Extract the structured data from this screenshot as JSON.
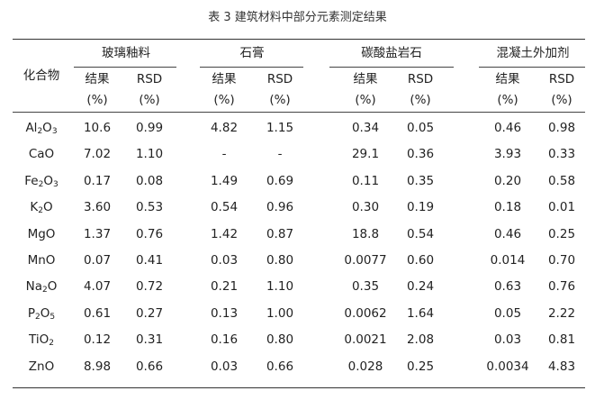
{
  "caption": "表 3 建筑材料中部分元素测定结果",
  "row_header": "化合物",
  "groups": [
    "玻璃釉料",
    "石膏",
    "碳酸盐岩石",
    "混凝土外加剂"
  ],
  "sub_headers": {
    "result": "结果",
    "rsd": "RSD",
    "unit": "(%)"
  },
  "rows": [
    {
      "compound": [
        "Al",
        "2",
        "O",
        "3"
      ],
      "values": [
        "10.6",
        "0.99",
        "4.82",
        "1.15",
        "0.34",
        "0.05",
        "0.46",
        "0.98"
      ]
    },
    {
      "compound": [
        "CaO"
      ],
      "values": [
        "7.02",
        "1.10",
        "-",
        "-",
        "29.1",
        "0.36",
        "3.93",
        "0.33"
      ]
    },
    {
      "compound": [
        "Fe",
        "2",
        "O",
        "3"
      ],
      "values": [
        "0.17",
        "0.08",
        "1.49",
        "0.69",
        "0.11",
        "0.35",
        "0.20",
        "0.58"
      ]
    },
    {
      "compound": [
        "K",
        "2",
        "O"
      ],
      "values": [
        "3.60",
        "0.53",
        "0.54",
        "0.96",
        "0.30",
        "0.19",
        "0.18",
        "0.01"
      ]
    },
    {
      "compound": [
        "MgO"
      ],
      "values": [
        "1.37",
        "0.76",
        "1.42",
        "0.87",
        "18.8",
        "0.54",
        "0.46",
        "0.25"
      ]
    },
    {
      "compound": [
        "MnO"
      ],
      "values": [
        "0.07",
        "0.41",
        "0.03",
        "0.80",
        "0.0077",
        "0.60",
        "0.014",
        "0.70"
      ]
    },
    {
      "compound": [
        "Na",
        "2",
        "O"
      ],
      "values": [
        "4.07",
        "0.72",
        "0.21",
        "1.10",
        "0.35",
        "0.24",
        "0.63",
        "0.76"
      ]
    },
    {
      "compound": [
        "P",
        "2",
        "O",
        "5"
      ],
      "values": [
        "0.61",
        "0.27",
        "0.13",
        "1.00",
        "0.0062",
        "1.64",
        "0.05",
        "2.22"
      ]
    },
    {
      "compound": [
        "TiO",
        "2"
      ],
      "values": [
        "0.12",
        "0.31",
        "0.16",
        "0.80",
        "0.0021",
        "2.08",
        "0.03",
        "0.81"
      ]
    },
    {
      "compound": [
        "ZnO"
      ],
      "values": [
        "8.98",
        "0.66",
        "0.03",
        "0.66",
        "0.028",
        "0.25",
        "0.0034",
        "4.83"
      ]
    }
  ]
}
